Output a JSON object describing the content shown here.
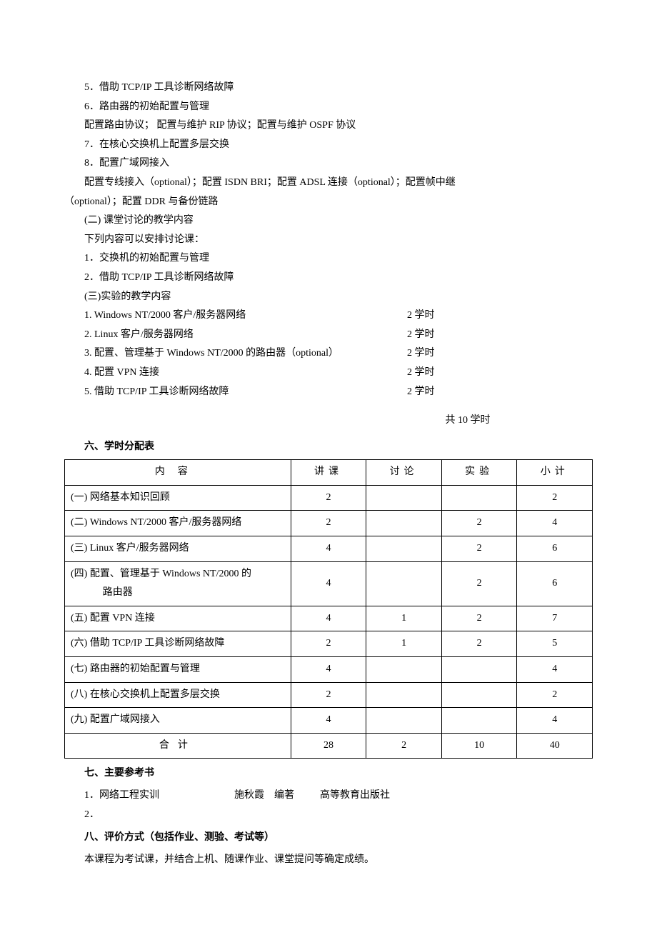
{
  "body": {
    "lines": [
      "5．借助 TCP/IP 工具诊断网络故障",
      "6．路由器的初始配置与管理",
      "配置路由协议；  配置与维护 RIP 协议；配置与维护 OSPF 协议",
      "7．在核心交换机上配置多层交换",
      "8．配置广域网接入",
      "配置专线接入（optional）；配置 ISDN BRI；配置 ADSL 连接（optional）；配置帧中继",
      "（optional）；配置 DDR 与备份链路",
      "(二) 课堂讨论的教学内容",
      "下列内容可以安排讨论课：",
      "1．交换机的初始配置与管理",
      "2．借助 TCP/IP 工具诊断网络故障",
      "(三)实验的教学内容"
    ],
    "line_indents": [
      "in",
      "in",
      "in",
      "in",
      "in",
      "in",
      "no",
      "in",
      "in",
      "in",
      "in",
      "in"
    ]
  },
  "experiments": [
    {
      "label": "1. Windows NT/2000 客户/服务器网络",
      "hours": "2 学时"
    },
    {
      "label": "2. Linux 客户/服务器网络",
      "hours": "2 学时"
    },
    {
      "label": "3. 配置、管理基于 Windows NT/2000 的路由器（optional）",
      "hours": "2 学时"
    },
    {
      "label": "4. 配置 VPN 连接",
      "hours": "2 学时"
    },
    {
      "label": "5. 借助 TCP/IP 工具诊断网络故障",
      "hours": "2 学时"
    }
  ],
  "total_hours_line": "共 10 学时",
  "section6_title": "六、学时分配表",
  "table": {
    "headers": [
      "内容",
      "讲课",
      "讨论",
      "实验",
      "小计"
    ],
    "rows": [
      {
        "label": "(一) 网络基本知识回顾",
        "lecture": "2",
        "discussion": "",
        "lab": "",
        "subtotal": "2"
      },
      {
        "label": "(二) Windows NT/2000 客户/服务器网络",
        "lecture": "2",
        "discussion": "",
        "lab": "2",
        "subtotal": "4"
      },
      {
        "label": "(三) Linux 客户/服务器网络",
        "lecture": "4",
        "discussion": "",
        "lab": "2",
        "subtotal": "6"
      },
      {
        "label": "(四) 配置、管理基于 Windows NT/2000 的\n路由器",
        "lecture": "4",
        "discussion": "",
        "lab": "2",
        "subtotal": "6"
      },
      {
        "label": "(五) 配置 VPN 连接",
        "lecture": "4",
        "discussion": "1",
        "lab": "2",
        "subtotal": "7"
      },
      {
        "label": "(六) 借助 TCP/IP 工具诊断网络故障",
        "lecture": "2",
        "discussion": "1",
        "lab": "2",
        "subtotal": "5"
      },
      {
        "label": "(七) 路由器的初始配置与管理",
        "lecture": "4",
        "discussion": "",
        "lab": "",
        "subtotal": "4"
      },
      {
        "label": "(八) 在核心交换机上配置多层交换",
        "lecture": "2",
        "discussion": "",
        "lab": "",
        "subtotal": "2"
      },
      {
        "label": "(九) 配置广域网接入",
        "lecture": "4",
        "discussion": "",
        "lab": "",
        "subtotal": "4"
      }
    ],
    "total_row": {
      "label": "合计",
      "lecture": "28",
      "discussion": "2",
      "lab": "10",
      "subtotal": "40"
    }
  },
  "section7_title": "七、主要参考书",
  "references": [
    {
      "num": "1．",
      "title": "网络工程实训",
      "author": "施秋霞",
      "role": "编著",
      "publisher": "高等教育出版社"
    },
    {
      "num": "2．",
      "title": "",
      "author": "",
      "role": "",
      "publisher": ""
    }
  ],
  "section8_title": "八、评价方式（包括作业、测验、考试等）",
  "section8_body": "本课程为考试课，并结合上机、随课作业、课堂提问等确定成绩。",
  "style": {
    "font_family": "SimSun",
    "font_size_pt": 10.5,
    "line_height": 1.9,
    "text_color": "#000000",
    "background_color": "#ffffff",
    "table_border_color": "#000000"
  }
}
